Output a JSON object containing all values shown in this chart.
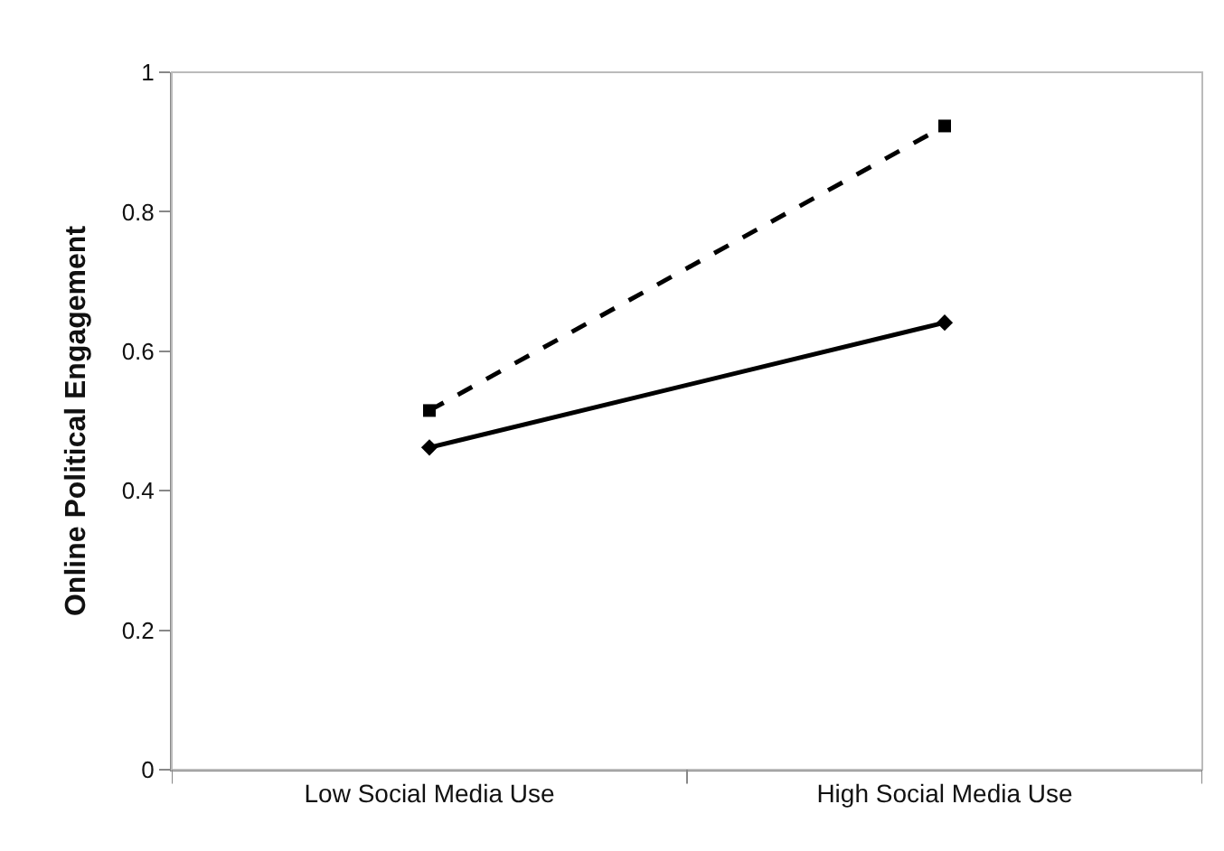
{
  "chart_data": {
    "type": "line",
    "ylabel": "Online Political Engagement",
    "categories": [
      "Low Social Media Use",
      "High Social Media Use"
    ],
    "series": [
      {
        "color": "#000000",
        "values": [
          0.462,
          0.641
        ],
        "marker": "diamond",
        "line_style": "solid"
      },
      {
        "color": "#000000",
        "values": [
          0.515,
          0.923
        ],
        "marker": "square",
        "line_style": "dashed"
      }
    ],
    "ylim": [
      0,
      1
    ],
    "yticks": [
      0,
      0.2,
      0.4,
      0.6,
      0.8,
      1
    ],
    "grid": false
  }
}
